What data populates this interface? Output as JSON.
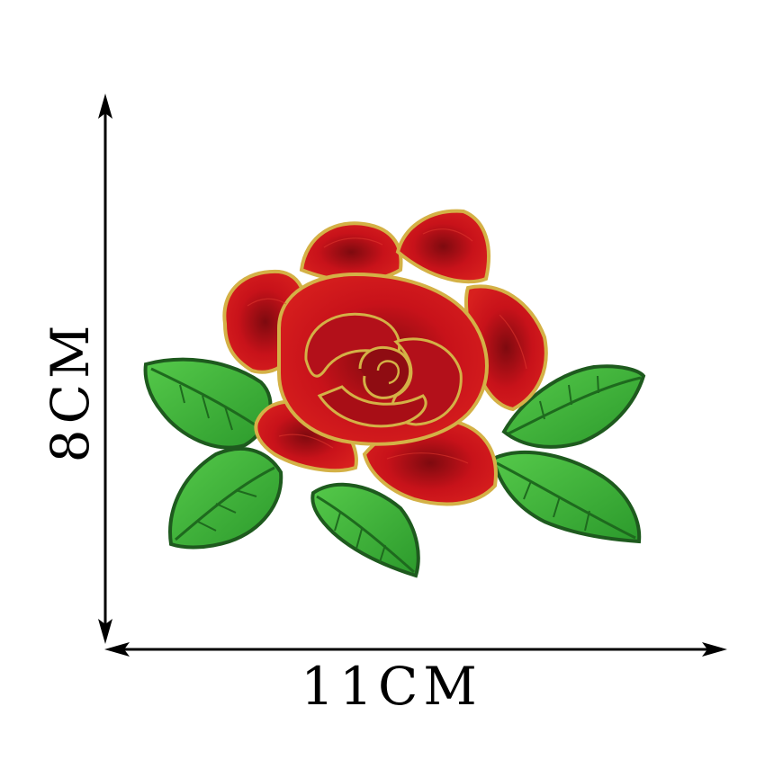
{
  "dimensions": {
    "height_label": "8CM",
    "width_label": "11CM"
  },
  "product": {
    "subject": "rose-embroidery-patch-icon"
  },
  "colors": {
    "petal": "#c8121a",
    "petal_dark": "#7e0a0f",
    "gold_edge": "#d4b146",
    "leaf": "#3db83a",
    "leaf_dark": "#1e6a1e",
    "arrow": "#000000"
  }
}
